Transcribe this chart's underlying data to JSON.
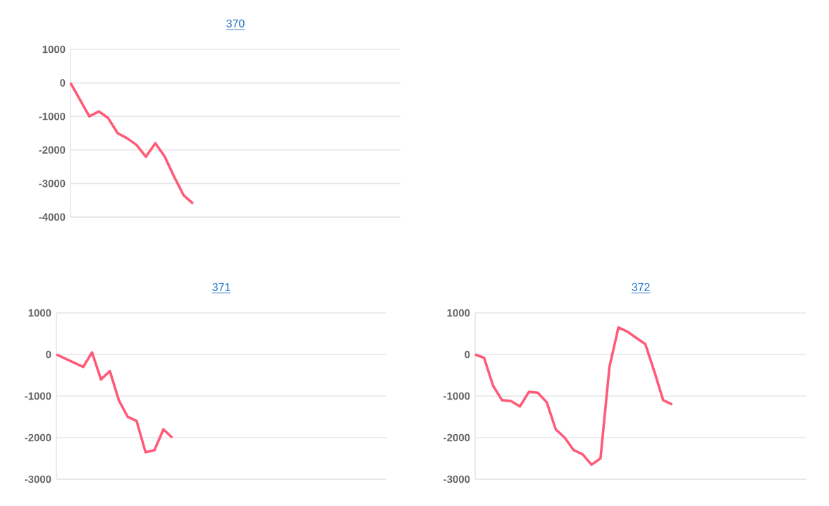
{
  "chart_data": [
    {
      "type": "line",
      "title": "370",
      "categories": [
        null,
        null,
        null,
        null,
        null,
        null,
        null,
        null,
        null,
        null,
        null,
        null,
        null,
        null,
        null,
        null,
        null,
        null,
        null,
        null,
        null,
        null,
        null,
        null,
        null,
        null,
        null,
        null,
        null,
        null,
        null,
        null,
        null,
        null,
        null,
        null
      ],
      "values": [
        0,
        -500,
        -1000,
        -850,
        -1050,
        -1500,
        -1650,
        -1850,
        -2200,
        -1800,
        -2200,
        -2800,
        -3350,
        -3600,
        null,
        null,
        null,
        null,
        null,
        null,
        null,
        null,
        null,
        null,
        null,
        null,
        null,
        null,
        null,
        null,
        null,
        null,
        null,
        null,
        null,
        null
      ],
      "color": "#ff5a78",
      "ylim": [
        -4000,
        1000
      ],
      "yticks": [
        -4000,
        -3000,
        -2000,
        -1000,
        0,
        1000
      ],
      "grid": "y",
      "tick_labels": "y"
    },
    {
      "type": "line",
      "title": "371",
      "categories": [
        null,
        null,
        null,
        null,
        null,
        null,
        null,
        null,
        null,
        null,
        null,
        null,
        null,
        null,
        null,
        null,
        null,
        null,
        null,
        null,
        null,
        null,
        null,
        null,
        null,
        null,
        null,
        null,
        null,
        null,
        null,
        null,
        null,
        null,
        null,
        null,
        null,
        null
      ],
      "values": [
        0,
        -100,
        -200,
        -300,
        50,
        -600,
        -400,
        -1100,
        -1500,
        -1600,
        -2350,
        -2300,
        -1800,
        -2000,
        null,
        null,
        null,
        null,
        null,
        null,
        null,
        null,
        null,
        null,
        null,
        null,
        null,
        null,
        null,
        null,
        null,
        null,
        null,
        null,
        null,
        null,
        null,
        null
      ],
      "color": "#ff5a78",
      "ylim": [
        -3000,
        1000
      ],
      "yticks": [
        -3000,
        -2000,
        -1000,
        0,
        1000
      ],
      "grid": "y",
      "tick_labels": "y"
    },
    {
      "type": "line",
      "title": "372",
      "categories": [
        null,
        null,
        null,
        null,
        null,
        null,
        null,
        null,
        null,
        null,
        null,
        null,
        null,
        null,
        null,
        null,
        null,
        null,
        null,
        null,
        null,
        null,
        null,
        null,
        null,
        null,
        null,
        null,
        null,
        null,
        null,
        null,
        null,
        null,
        null,
        null,
        null,
        null
      ],
      "values": [
        0,
        -80,
        -750,
        -1100,
        -1120,
        -1250,
        -900,
        -920,
        -1150,
        -1800,
        -2000,
        -2300,
        -2400,
        -2650,
        -2500,
        -300,
        650,
        550,
        400,
        250,
        -400,
        -1100,
        -1200,
        null,
        null,
        null,
        null,
        null,
        null,
        null,
        null,
        null,
        null,
        null,
        null,
        null,
        null,
        null
      ],
      "color": "#ff5a78",
      "ylim": [
        -3000,
        1000
      ],
      "yticks": [
        -3000,
        -2000,
        -1000,
        0,
        1000
      ],
      "grid": "y",
      "tick_labels": "y"
    }
  ]
}
